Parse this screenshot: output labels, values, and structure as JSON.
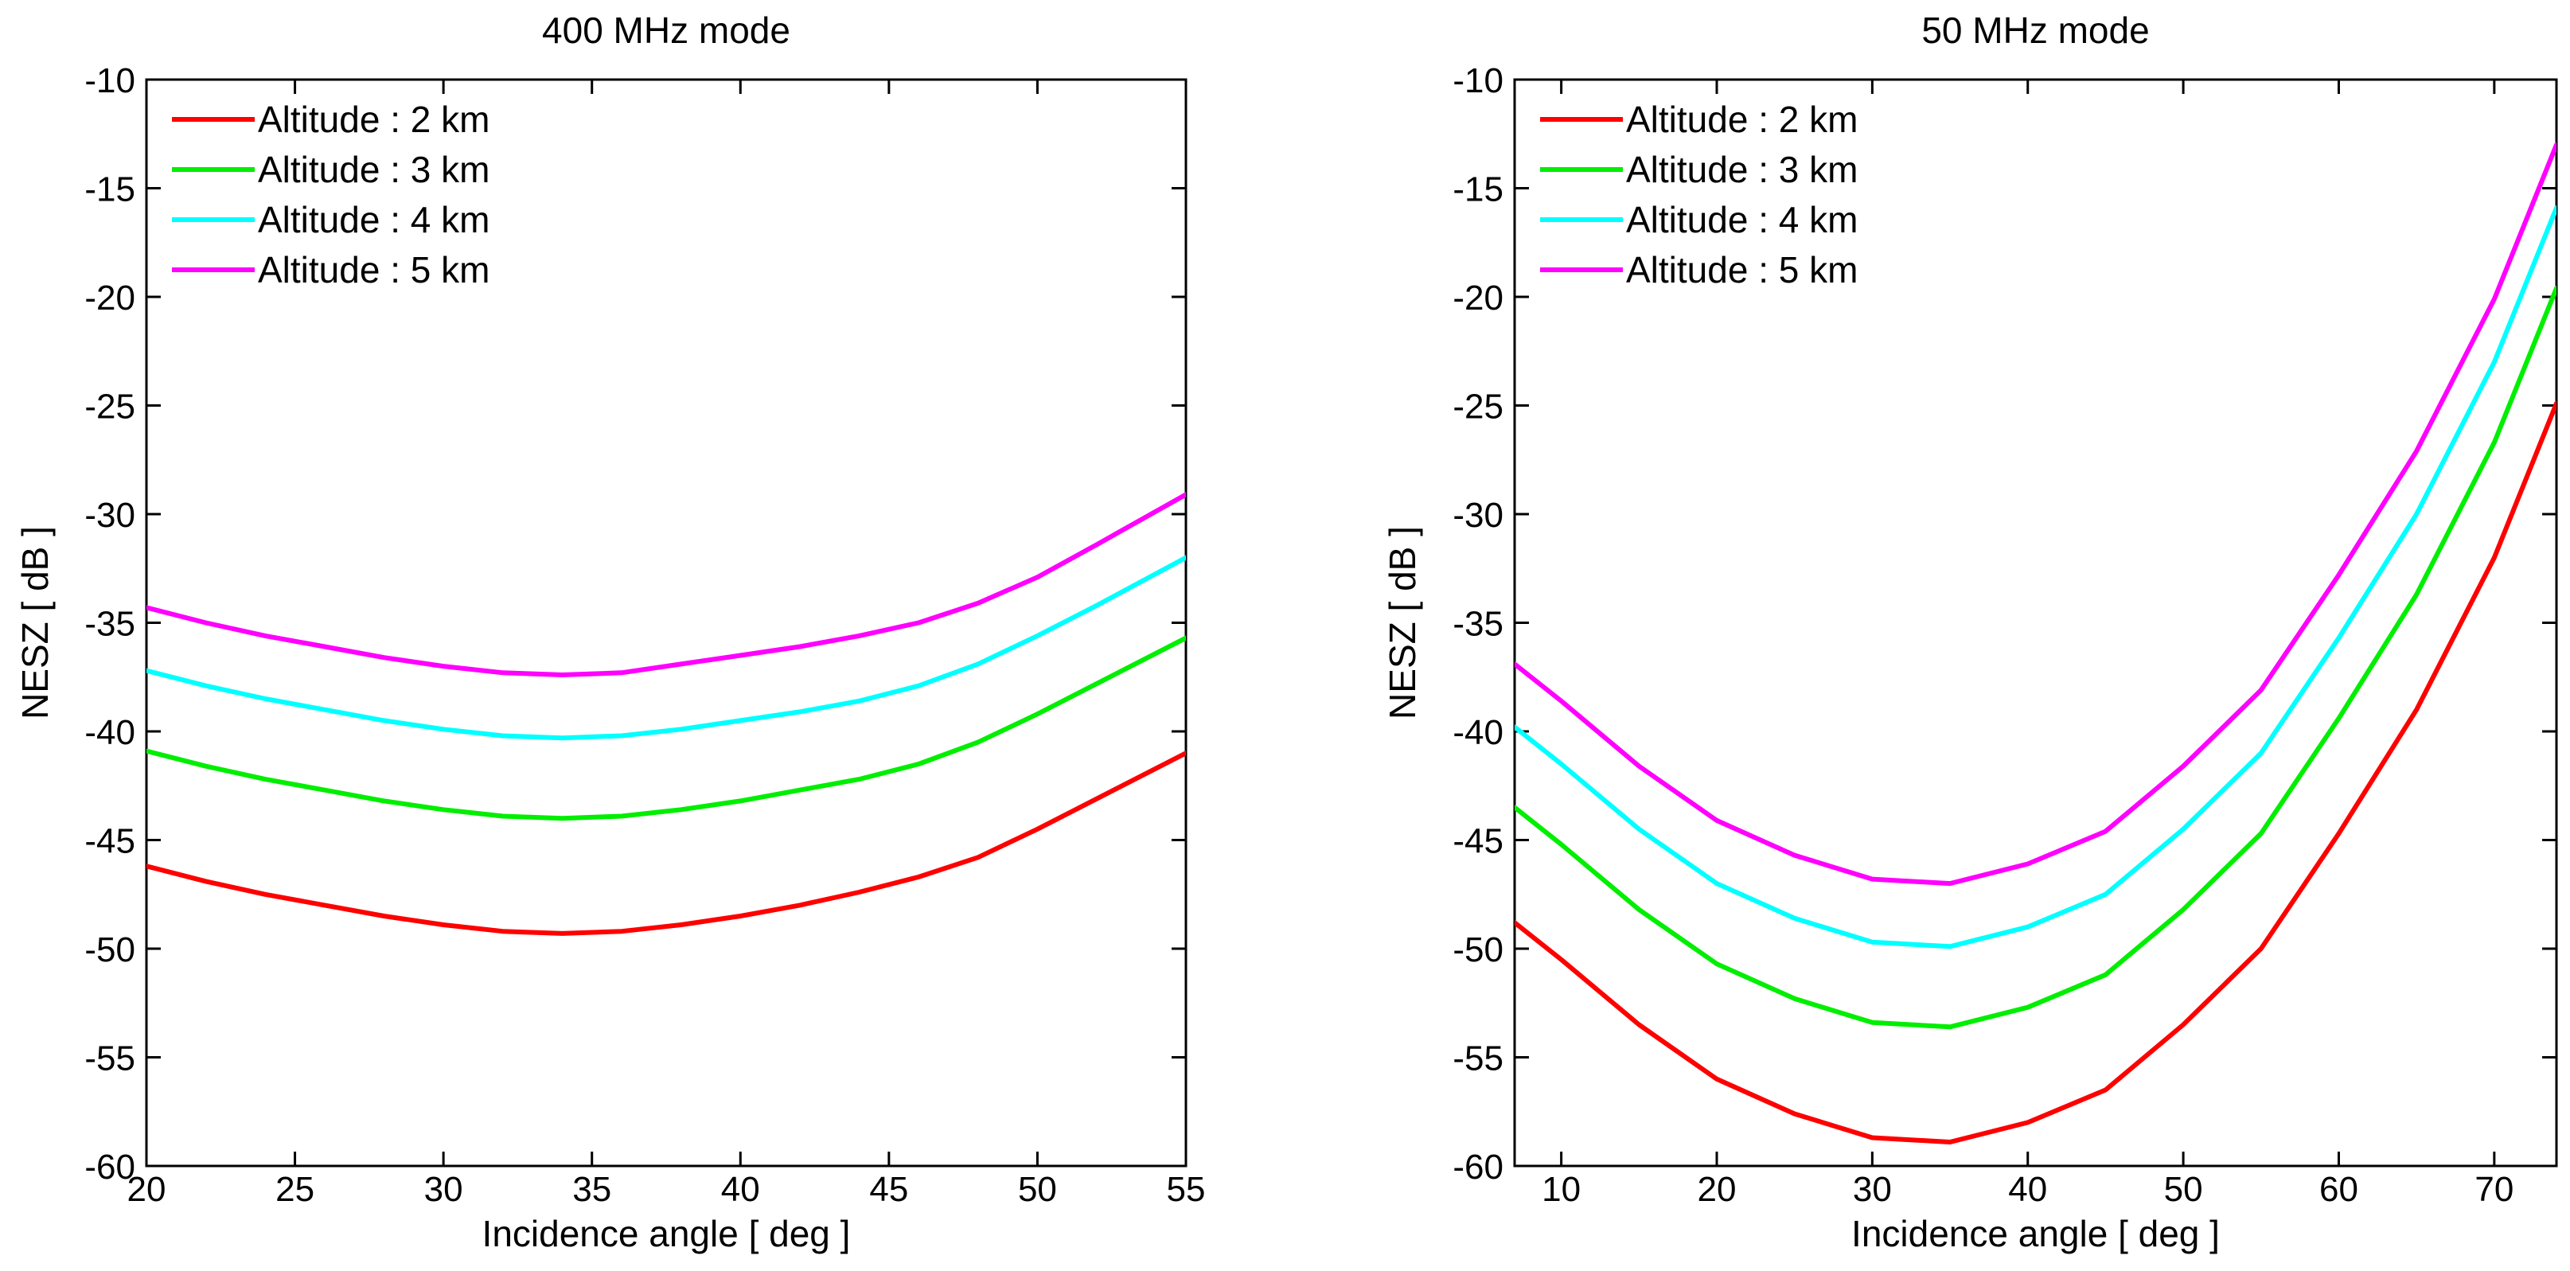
{
  "chart_data": [
    {
      "type": "line",
      "title": "400 MHz mode",
      "xlabel": "Incidence angle   [ deg ]",
      "ylabel": "NESZ   [ dB ]",
      "xlim": [
        20,
        55
      ],
      "ylim": [
        -60,
        -10
      ],
      "xticks": [
        20,
        25,
        30,
        35,
        40,
        45,
        50,
        55
      ],
      "yticks": [
        -60,
        -55,
        -50,
        -45,
        -40,
        -35,
        -30,
        -25,
        -20,
        -15,
        -10
      ],
      "grid": false,
      "legend_position": "top-left",
      "series": [
        {
          "name": "Altitude : 2 km",
          "color": "#ff0000",
          "x": [
            20,
            22,
            24,
            26,
            28,
            30,
            32,
            34,
            36,
            38,
            40,
            42,
            44,
            46,
            48,
            50,
            52,
            55
          ],
          "y": [
            -46.2,
            -46.9,
            -47.5,
            -48.0,
            -48.5,
            -48.9,
            -49.2,
            -49.3,
            -49.2,
            -48.9,
            -48.5,
            -48.0,
            -47.4,
            -46.7,
            -45.8,
            -44.5,
            -43.1,
            -41.0
          ]
        },
        {
          "name": "Altitude : 3 km",
          "color": "#00ee00",
          "x": [
            20,
            22,
            24,
            26,
            28,
            30,
            32,
            34,
            36,
            38,
            40,
            42,
            44,
            46,
            48,
            50,
            52,
            55
          ],
          "y": [
            -40.9,
            -41.6,
            -42.2,
            -42.7,
            -43.2,
            -43.6,
            -43.9,
            -44.0,
            -43.9,
            -43.6,
            -43.2,
            -42.7,
            -42.2,
            -41.5,
            -40.5,
            -39.2,
            -37.8,
            -35.7
          ]
        },
        {
          "name": "Altitude : 4 km",
          "color": "#00ffff",
          "x": [
            20,
            22,
            24,
            26,
            28,
            30,
            32,
            34,
            36,
            38,
            40,
            42,
            44,
            46,
            48,
            50,
            52,
            55
          ],
          "y": [
            -37.2,
            -37.9,
            -38.5,
            -39.0,
            -39.5,
            -39.9,
            -40.2,
            -40.3,
            -40.2,
            -39.9,
            -39.5,
            -39.1,
            -38.6,
            -37.9,
            -36.9,
            -35.6,
            -34.2,
            -32.0
          ]
        },
        {
          "name": "Altitude : 5 km",
          "color": "#ff00ff",
          "x": [
            20,
            22,
            24,
            26,
            28,
            30,
            32,
            34,
            36,
            38,
            40,
            42,
            44,
            46,
            48,
            50,
            52,
            55
          ],
          "y": [
            -34.3,
            -35.0,
            -35.6,
            -36.1,
            -36.6,
            -37.0,
            -37.3,
            -37.4,
            -37.3,
            -36.9,
            -36.5,
            -36.1,
            -35.6,
            -35.0,
            -34.1,
            -32.9,
            -31.4,
            -29.1
          ]
        }
      ]
    },
    {
      "type": "line",
      "title": "50 MHz mode",
      "xlabel": "Incidence angle   [ deg ]",
      "ylabel": "NESZ   [ dB ]",
      "xlim": [
        7,
        74
      ],
      "ylim": [
        -60,
        -10
      ],
      "xticks": [
        10,
        20,
        30,
        40,
        50,
        60,
        70
      ],
      "yticks": [
        -60,
        -55,
        -50,
        -45,
        -40,
        -35,
        -30,
        -25,
        -20,
        -15,
        -10
      ],
      "grid": false,
      "legend_position": "top-left",
      "series": [
        {
          "name": "Altitude : 2 km",
          "color": "#ff0000",
          "x": [
            7,
            10,
            15,
            20,
            25,
            30,
            35,
            40,
            45,
            50,
            55,
            60,
            65,
            70,
            74
          ],
          "y": [
            -48.8,
            -50.5,
            -53.5,
            -56.0,
            -57.6,
            -58.7,
            -58.9,
            -58.0,
            -56.5,
            -53.5,
            -50.0,
            -44.7,
            -39.0,
            -32.0,
            -24.9
          ]
        },
        {
          "name": "Altitude : 3 km",
          "color": "#00ee00",
          "x": [
            7,
            10,
            15,
            20,
            25,
            30,
            35,
            40,
            45,
            50,
            55,
            60,
            65,
            70,
            74
          ],
          "y": [
            -43.5,
            -45.2,
            -48.2,
            -50.7,
            -52.3,
            -53.4,
            -53.6,
            -52.7,
            -51.2,
            -48.2,
            -44.7,
            -39.4,
            -33.7,
            -26.7,
            -19.6
          ]
        },
        {
          "name": "Altitude : 4 km",
          "color": "#00ffff",
          "x": [
            7,
            10,
            15,
            20,
            25,
            30,
            35,
            40,
            45,
            50,
            55,
            60,
            65,
            70,
            74
          ],
          "y": [
            -39.8,
            -41.5,
            -44.5,
            -47.0,
            -48.6,
            -49.7,
            -49.9,
            -49.0,
            -47.5,
            -44.5,
            -41.0,
            -35.7,
            -30.0,
            -23.0,
            -15.9
          ]
        },
        {
          "name": "Altitude : 5 km",
          "color": "#ff00ff",
          "x": [
            7,
            10,
            15,
            20,
            25,
            30,
            35,
            40,
            45,
            50,
            55,
            60,
            65,
            70,
            74
          ],
          "y": [
            -36.9,
            -38.6,
            -41.6,
            -44.1,
            -45.7,
            -46.8,
            -47.0,
            -46.1,
            -44.6,
            -41.6,
            -38.1,
            -32.8,
            -27.1,
            -20.1,
            -13.0
          ]
        }
      ]
    }
  ]
}
